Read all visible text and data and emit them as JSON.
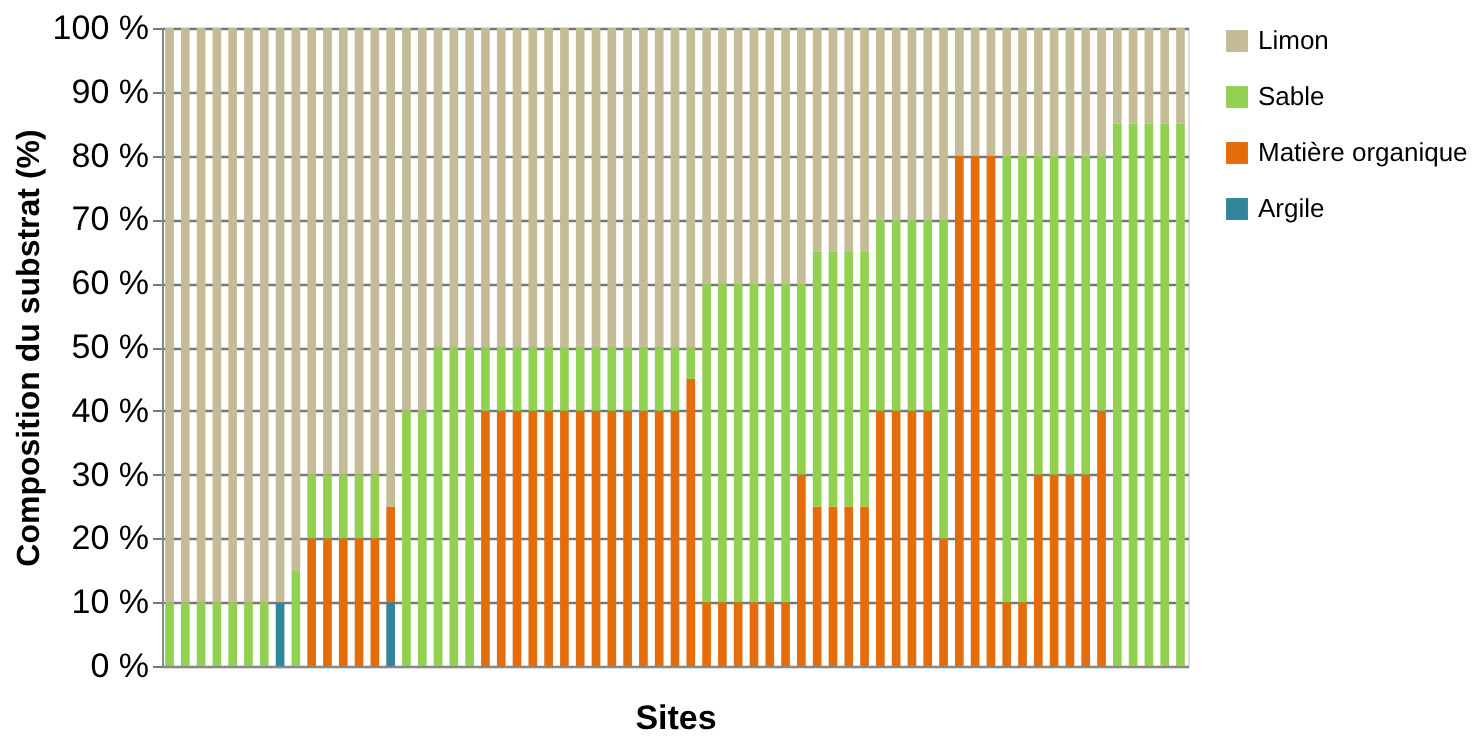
{
  "chart_data": {
    "type": "bar",
    "stacked": true,
    "xlabel": "Sites",
    "ylabel": "Composition du substrat (%)",
    "categories": [
      null,
      null,
      null,
      null,
      null,
      null,
      null,
      null,
      null,
      null,
      null,
      null,
      null,
      null,
      null,
      null,
      null,
      null,
      null,
      null,
      null,
      null,
      null,
      null,
      null,
      null,
      null,
      null,
      null,
      null,
      null,
      null,
      null,
      null,
      null,
      null,
      null,
      null,
      null,
      null,
      null,
      null,
      null,
      null,
      null,
      null,
      null,
      null,
      null,
      null,
      null,
      null,
      null,
      null,
      null,
      null,
      null,
      null,
      null,
      null,
      null,
      null,
      null,
      null,
      null
    ],
    "series": [
      {
        "name": "Argile",
        "color": "#31859c",
        "values": [
          0,
          0,
          0,
          0,
          0,
          0,
          0,
          10,
          0,
          0,
          0,
          0,
          0,
          0,
          10,
          0,
          0,
          0,
          0,
          0,
          0,
          0,
          0,
          0,
          0,
          0,
          0,
          0,
          0,
          0,
          0,
          0,
          0,
          0,
          0,
          0,
          0,
          0,
          0,
          0,
          0,
          0,
          0,
          0,
          0,
          0,
          0,
          0,
          0,
          0,
          0,
          0,
          0,
          0,
          0,
          0,
          0,
          0,
          0,
          0,
          0,
          0,
          0,
          0,
          0
        ]
      },
      {
        "name": "Matière organique",
        "color": "#e46c0a",
        "values": [
          0,
          0,
          0,
          0,
          0,
          0,
          0,
          0,
          0,
          20,
          20,
          20,
          20,
          20,
          15,
          0,
          0,
          0,
          0,
          0,
          40,
          40,
          40,
          40,
          40,
          40,
          40,
          40,
          40,
          40,
          40,
          40,
          40,
          45,
          10,
          10,
          10,
          10,
          10,
          10,
          30,
          25,
          25,
          25,
          25,
          40,
          40,
          40,
          40,
          20,
          80,
          80,
          80,
          10,
          10,
          30,
          30,
          30,
          30,
          40,
          0,
          0,
          0,
          0,
          0
        ]
      },
      {
        "name": "Sable",
        "color": "#92d050",
        "values": [
          10,
          10,
          10,
          10,
          10,
          10,
          10,
          0,
          15,
          10,
          10,
          10,
          10,
          10,
          0,
          40,
          40,
          50,
          50,
          50,
          10,
          10,
          10,
          10,
          10,
          10,
          10,
          10,
          10,
          10,
          10,
          10,
          10,
          5,
          50,
          50,
          50,
          50,
          50,
          50,
          30,
          40,
          40,
          40,
          40,
          30,
          30,
          30,
          30,
          50,
          0,
          0,
          0,
          70,
          70,
          50,
          50,
          50,
          50,
          40,
          85,
          85,
          85,
          85,
          85
        ]
      },
      {
        "name": "Limon",
        "color": "#c4bc96",
        "values": [
          90,
          90,
          90,
          90,
          90,
          90,
          90,
          90,
          85,
          70,
          70,
          70,
          70,
          70,
          75,
          60,
          60,
          50,
          50,
          50,
          50,
          50,
          50,
          50,
          50,
          50,
          50,
          50,
          50,
          50,
          50,
          50,
          50,
          50,
          40,
          40,
          40,
          40,
          40,
          40,
          40,
          35,
          35,
          35,
          35,
          30,
          30,
          30,
          30,
          30,
          20,
          20,
          20,
          20,
          20,
          20,
          20,
          20,
          20,
          20,
          15,
          15,
          15,
          15,
          15
        ]
      }
    ],
    "ylim": [
      0,
      100
    ],
    "yticks": [
      {
        "value": 0,
        "label": "0 %"
      },
      {
        "value": 10,
        "label": "10 %"
      },
      {
        "value": 20,
        "label": "20 %"
      },
      {
        "value": 30,
        "label": "30 %"
      },
      {
        "value": 40,
        "label": "40 %"
      },
      {
        "value": 50,
        "label": "50 %"
      },
      {
        "value": 60,
        "label": "60 %"
      },
      {
        "value": 70,
        "label": "70 %"
      },
      {
        "value": 80,
        "label": "80 %"
      },
      {
        "value": 90,
        "label": "90 %"
      },
      {
        "value": 100,
        "label": "100 %"
      }
    ],
    "grid": "y",
    "legend": "right",
    "tick_labels": "y"
  }
}
